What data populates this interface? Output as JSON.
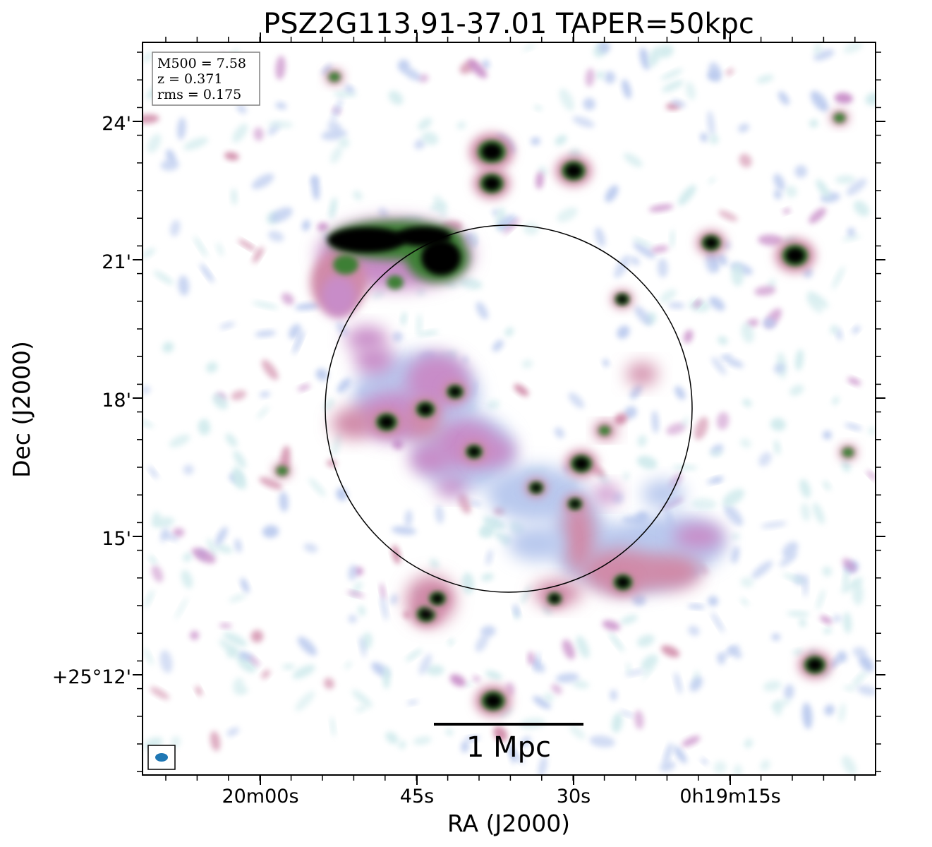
{
  "chart_data": {
    "type": "heatmap",
    "title": "PSZ2G113.91-37.01 TAPER=50kpc",
    "xlabel": "RA (J2000)",
    "ylabel": "Dec (J2000)",
    "x_ticks": [
      "20m00s",
      "45s",
      "30s",
      "0h19m15s"
    ],
    "y_ticks": [
      "24'",
      "21'",
      "18'",
      "15'",
      "+25°12'"
    ],
    "info_box": {
      "lines": [
        "M500 = 7.58",
        "z = 0.371",
        "rms = 0.175"
      ]
    },
    "scale_bar_label": "1 Mpc",
    "colormap": "cubehelix (white - light blue - lavender - pink - green - black)",
    "colors": {
      "noise_light": "#cfeaec",
      "low": "#b9c9ee",
      "mid": "#c88cc8",
      "pink": "#d08aa8",
      "green": "#3e7f34",
      "peak": "#000000",
      "beam": "#1f77b4"
    },
    "features": [
      "compact sources (black cores)",
      "arc-shaped relic in the north-east",
      "diffuse emission inside the circle",
      "elongated emission in the south-west"
    ]
  }
}
